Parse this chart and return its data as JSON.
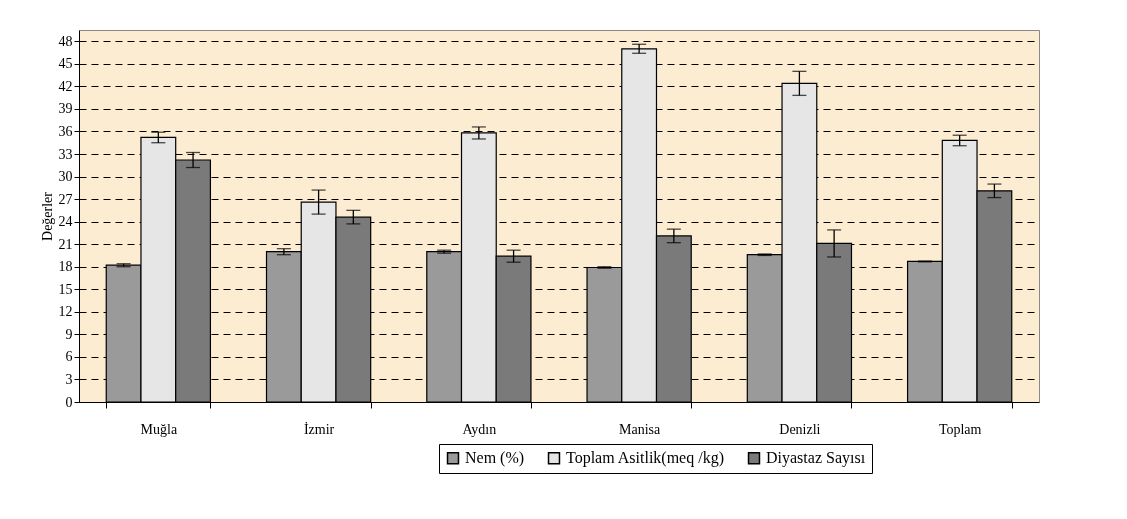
{
  "chart_data": {
    "type": "bar",
    "ylabel": "Değerler",
    "categories": [
      "Muğla",
      "İzmir",
      "Aydın",
      "Manisa",
      "Denizli",
      "Toplam"
    ],
    "series": [
      {
        "name": "Nem (%)",
        "color": "#9a9a9a",
        "values": [
          18.2,
          20.0,
          20.0,
          17.9,
          19.6,
          18.7
        ],
        "errors": [
          0.2,
          0.4,
          0.2,
          0.1,
          0.1,
          0.05
        ]
      },
      {
        "name": "Toplam Asitlik(meq /kg)",
        "color": "#e6e6e6",
        "values": [
          35.2,
          26.6,
          35.8,
          47.0,
          42.4,
          34.8
        ],
        "errors": [
          0.7,
          1.6,
          0.8,
          0.6,
          1.6,
          0.7
        ]
      },
      {
        "name": "Diyastaz Sayısı",
        "color": "#7a7a7a",
        "values": [
          32.2,
          24.6,
          19.4,
          22.1,
          21.1,
          28.1
        ],
        "errors": [
          1.0,
          0.9,
          0.8,
          0.9,
          1.8,
          0.9
        ]
      }
    ],
    "ylim": [
      0,
      49.5
    ],
    "yticks": [
      0,
      3,
      6,
      9,
      12,
      15,
      18,
      21,
      24,
      27,
      30,
      33,
      36,
      39,
      42,
      45,
      48
    ],
    "grid": "y",
    "legend": "bottom right"
  }
}
